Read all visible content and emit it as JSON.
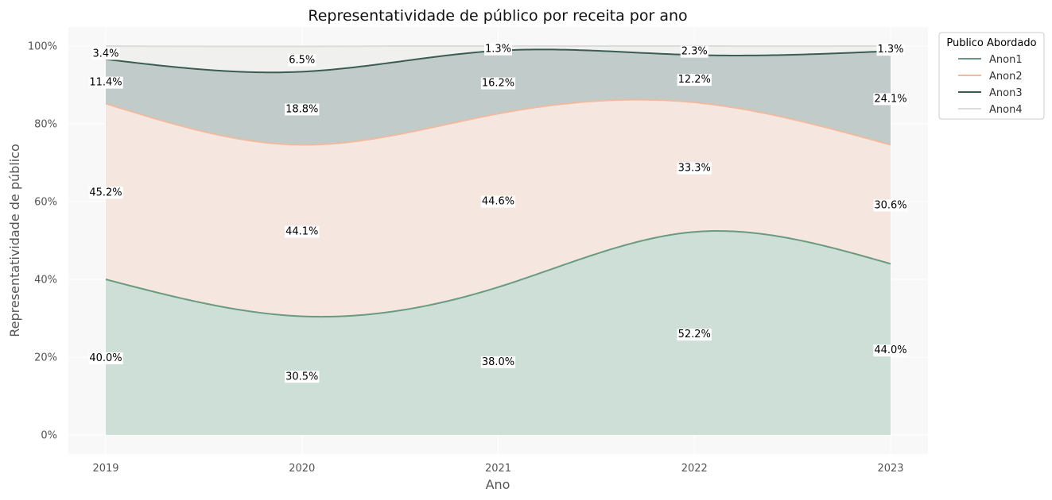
{
  "chart_data": {
    "type": "area",
    "title": "Representatividade de público por receita por ano",
    "xlabel": "Ano",
    "ylabel": "Representatividade de público",
    "x": [
      "2019",
      "2020",
      "2021",
      "2022",
      "2023"
    ],
    "ylim": [
      0,
      100
    ],
    "yticks": [
      "0%",
      "20%",
      "40%",
      "60%",
      "80%",
      "100%"
    ],
    "stacked": true,
    "smoothed": true,
    "grid": true,
    "legend": {
      "title": "Publico Abordado",
      "position": "outside-top-right"
    },
    "series": [
      {
        "name": "Anon1",
        "values": [
          40.0,
          30.5,
          38.0,
          52.2,
          44.0
        ],
        "labels": [
          "40.0%",
          "30.5%",
          "38.0%",
          "52.2%",
          "44.0%"
        ],
        "line_color": "#6a9a80",
        "fill_color": "#cddfd7"
      },
      {
        "name": "Anon2",
        "values": [
          45.2,
          44.1,
          44.6,
          33.3,
          30.6
        ],
        "labels": [
          "45.2%",
          "44.1%",
          "44.6%",
          "33.3%",
          "30.6%"
        ],
        "line_color": "#eebba0",
        "fill_color": "#f6e6e0"
      },
      {
        "name": "Anon3",
        "values": [
          11.4,
          18.8,
          16.2,
          12.2,
          24.1
        ],
        "labels": [
          "11.4%",
          "18.8%",
          "16.2%",
          "12.2%",
          "24.1%"
        ],
        "line_color": "#3b5c53",
        "fill_color": "#c1cbc9"
      },
      {
        "name": "Anon4",
        "values": [
          3.4,
          6.5,
          1.3,
          2.3,
          1.3
        ],
        "labels": [
          "3.4%",
          "6.5%",
          "1.3%",
          "2.3%",
          "1.3%"
        ],
        "line_color": "#dcdcdc",
        "fill_color": "#f0f1ef"
      }
    ]
  }
}
